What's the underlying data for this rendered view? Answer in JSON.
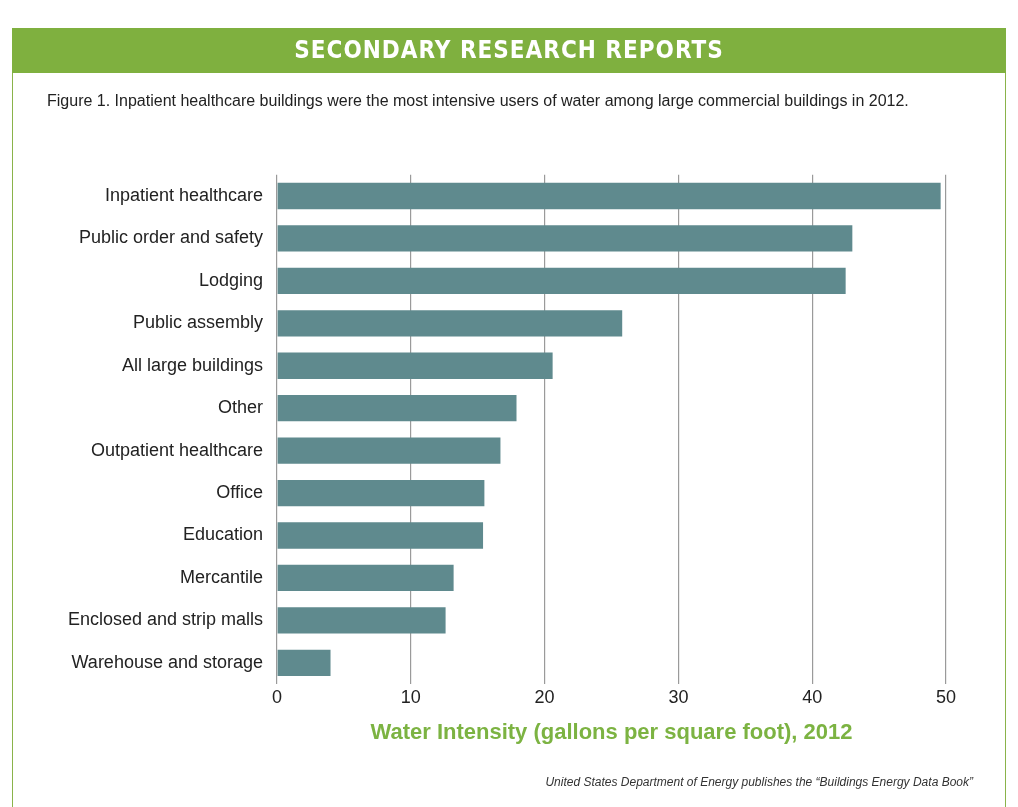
{
  "chart_data": {
    "type": "bar",
    "orientation": "horizontal",
    "title": "Figure 1. Inpatient healthcare buildings were the most intensive users of water among large commercial buildings in 2012.",
    "categories": [
      "Inpatient healthcare",
      "Public order and safety",
      "Lodging",
      "Public assembly",
      "All large buildings",
      "Other",
      "Outpatient healthcare",
      "Office",
      "Education",
      "Mercantile",
      "Enclosed and strip malls",
      "Warehouse and storage"
    ],
    "values": [
      49.6,
      43.0,
      42.5,
      25.8,
      20.6,
      17.9,
      16.7,
      15.5,
      15.4,
      13.2,
      12.6,
      4.0
    ],
    "color": "#5f8a8e",
    "xlim": [
      0,
      50
    ],
    "xticks": [
      0,
      10,
      20,
      30,
      40,
      50
    ],
    "xlabel": "Water Intensity (gallons per square foot), 2012",
    "grid": "x",
    "legend": false,
    "annotations": [
      "SECONDARY RESEARCH REPORTS",
      "United States Department of Energy publishes the “Buildings Energy Data Book”"
    ]
  }
}
